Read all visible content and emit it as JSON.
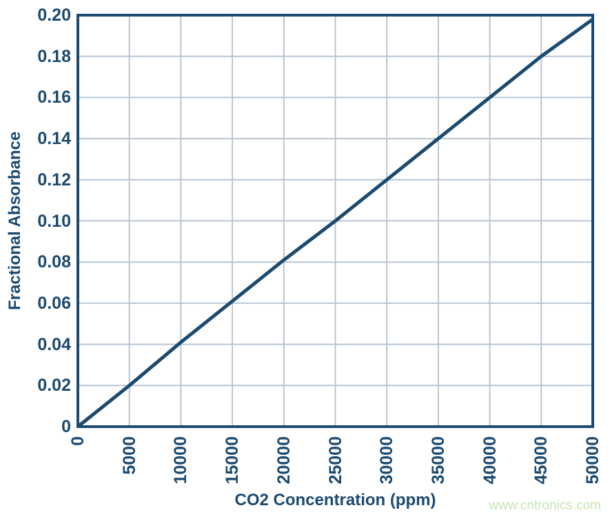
{
  "colors": {
    "navy": "#1b4a70",
    "grid": "#b9c6d4",
    "watermark_green": "#c7e4b5",
    "background": "#ffffff"
  },
  "watermark": {
    "text": "www.cntronics.com"
  },
  "chart_data": {
    "type": "line",
    "title": "",
    "xlabel": "CO2 Concentration (ppm)",
    "ylabel": "Fractional Absorbance",
    "xlim": [
      0,
      50000
    ],
    "ylim": [
      0,
      0.2
    ],
    "grid": true,
    "legend_position": "none",
    "x_ticks": {
      "values": [
        0,
        5000,
        10000,
        15000,
        20000,
        25000,
        30000,
        35000,
        40000,
        45000,
        50000
      ],
      "labels": [
        "0",
        "5000",
        "10000",
        "15000",
        "20000",
        "25000",
        "30000",
        "35000",
        "40000",
        "45000",
        "50000"
      ]
    },
    "y_ticks": {
      "values": [
        0,
        0.02,
        0.04,
        0.06,
        0.08,
        0.1,
        0.12,
        0.14,
        0.16,
        0.18,
        0.2
      ],
      "labels": [
        "0",
        "0.02",
        "0.04",
        "0.06",
        "0.08",
        "0.10",
        "0.12",
        "0.14",
        "0.16",
        "0.18",
        "0.20"
      ]
    },
    "series": [
      {
        "name": "Fractional Absorbance",
        "x": [
          0,
          5000,
          10000,
          15000,
          20000,
          25000,
          30000,
          35000,
          40000,
          45000,
          50000
        ],
        "y": [
          0,
          0.02,
          0.041,
          0.061,
          0.081,
          0.1,
          0.12,
          0.14,
          0.16,
          0.18,
          0.198
        ],
        "line_width": 5
      }
    ]
  }
}
